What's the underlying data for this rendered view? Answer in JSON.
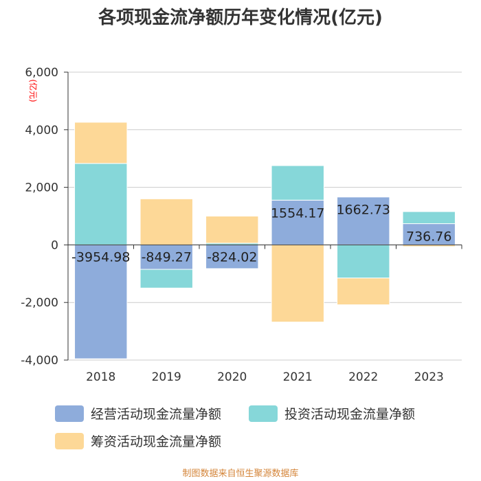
{
  "chart_data": {
    "type": "bar",
    "stacked": true,
    "title": "各项现金流净额历年变化情况(亿元)",
    "ylabel": "(亿元)",
    "xlabel": "",
    "ylim": [
      -4000,
      6000
    ],
    "yticks": [
      -4000,
      -2000,
      0,
      2000,
      4000,
      6000
    ],
    "ytick_labels": [
      "-4,000",
      "-2,000",
      "0",
      "2,000",
      "4,000",
      "6,000"
    ],
    "categories": [
      "2018",
      "2019",
      "2020",
      "2021",
      "2022",
      "2023"
    ],
    "series": [
      {
        "name": "经营活动现金流量净额",
        "color": "#8eacdb",
        "values": [
          -3954.98,
          -849.27,
          -824.02,
          1554.17,
          1662.73,
          736.76
        ],
        "labels": [
          "-3954.98",
          "-849.27",
          "-824.02",
          "1554.17",
          "1662.73",
          "736.76"
        ]
      },
      {
        "name": "投资活动现金流量净额",
        "color": "#86d7d9",
        "values": [
          2830,
          -650,
          60,
          1200,
          -1150,
          420
        ]
      },
      {
        "name": "筹资活动现金流量净额",
        "color": "#fdd897",
        "values": [
          1430,
          1600,
          940,
          -2680,
          -930,
          -60
        ]
      }
    ],
    "grid": true,
    "legend_position": "bottom"
  },
  "footer": {
    "source": "制图数据来自恒生聚源数据库"
  }
}
